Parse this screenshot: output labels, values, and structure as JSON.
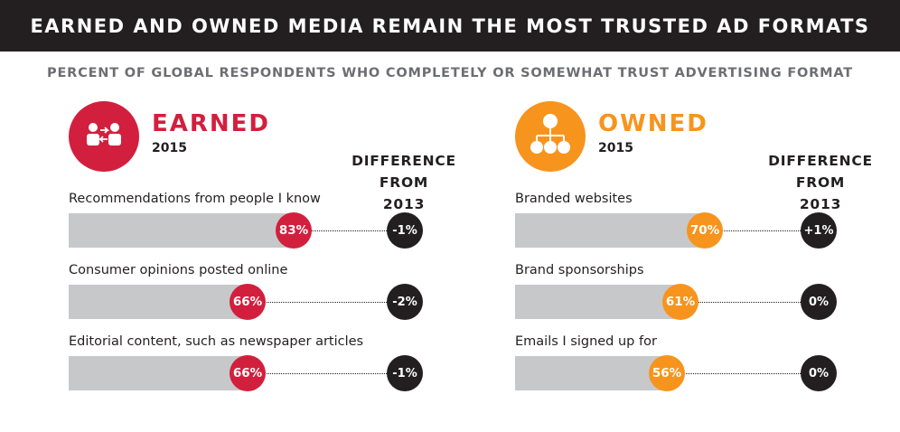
{
  "header": {
    "title": "EARNED AND OWNED MEDIA REMAIN THE MOST TRUSTED AD FORMATS"
  },
  "subtitle": "PERCENT OF GLOBAL RESPONDENTS WHO COMPLETELY OR SOMEWHAT TRUST ADVERTISING FORMAT",
  "diff_header": {
    "line1": "DIFFERENCE",
    "line2": "FROM",
    "line3": "2013"
  },
  "colors": {
    "earned": "#d31f3e",
    "owned": "#f7941d",
    "dark": "#231f20",
    "bar": "#c7c8ca"
  },
  "chart_data": [
    {
      "type": "bar",
      "title": "EARNED",
      "subtitle": "2015",
      "icon": "people-exchange-icon",
      "color": "#d31f3e",
      "categories": [
        "Recommendations from people I know",
        "Consumer opinions posted online",
        "Editorial content, such as newspaper articles"
      ],
      "values": [
        83,
        66,
        66
      ],
      "value_labels": [
        "83%",
        "66%",
        "66%"
      ],
      "difference_labels": [
        "-1%",
        "-2%",
        "-1%"
      ],
      "ylim": [
        0,
        100
      ]
    },
    {
      "type": "bar",
      "title": "OWNED",
      "subtitle": "2015",
      "icon": "org-chart-icon",
      "color": "#f7941d",
      "categories": [
        "Branded websites",
        "Brand sponsorships",
        "Emails I signed up for"
      ],
      "values": [
        70,
        61,
        56
      ],
      "value_labels": [
        "70%",
        "61%",
        "56%"
      ],
      "difference_labels": [
        "+1%",
        "0%",
        "0%"
      ],
      "ylim": [
        0,
        100
      ]
    }
  ]
}
